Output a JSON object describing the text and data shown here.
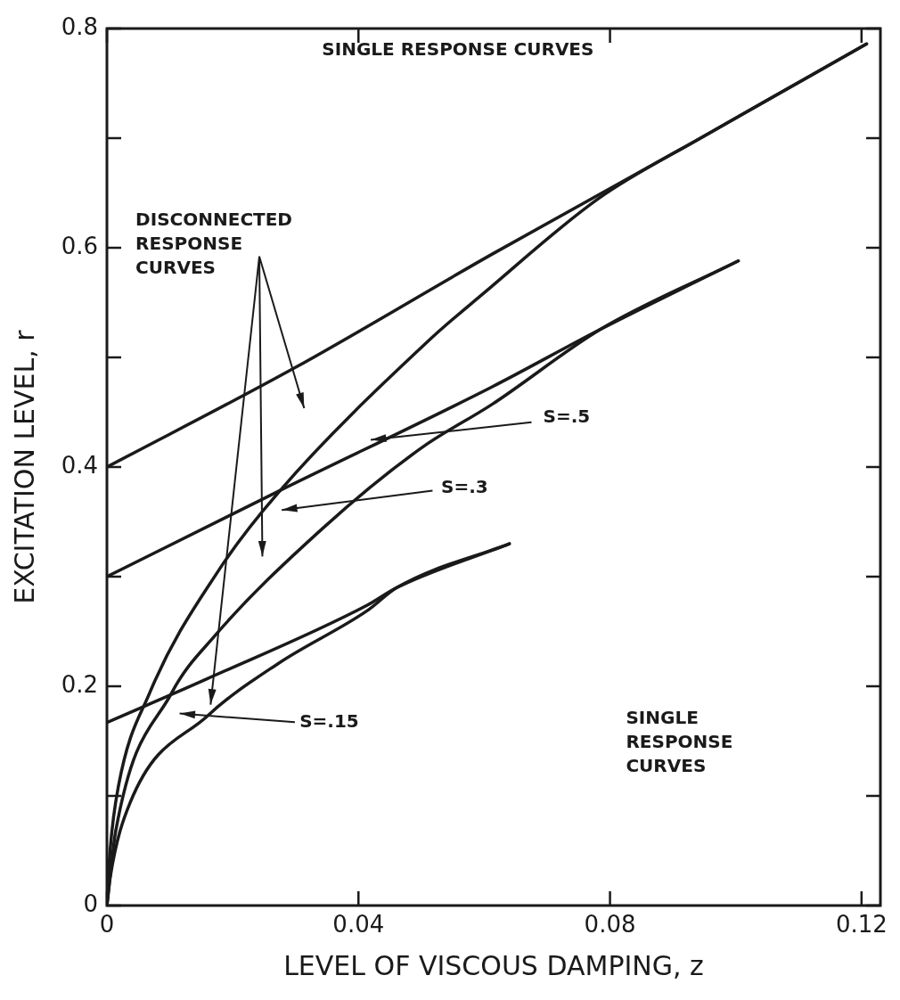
{
  "chart_data": {
    "type": "line",
    "xlabel": "LEVEL OF VISCOUS DAMPING, z",
    "ylabel": "EXCITATION LEVEL, r",
    "xlim": [
      0,
      0.123
    ],
    "ylim": [
      0,
      0.8
    ],
    "xticks": [
      0,
      0.04,
      0.08,
      0.12
    ],
    "yticks": [
      0,
      {
        "value": 0.1,
        "label": null
      },
      0.2,
      {
        "value": 0.3,
        "label": null
      },
      0.4,
      {
        "value": 0.5,
        "label": null
      },
      0.6,
      {
        "value": 0.7,
        "label": null
      },
      0.8
    ],
    "grid": false,
    "legend": false,
    "marker": "none",
    "line_style": "solid",
    "series": [
      {
        "color": "#1a1a1a",
        "x": [
          0,
          0.0297,
          0.0612,
          0.0947,
          0.1208
        ],
        "values": [
          0.4,
          0.49,
          0.594,
          0.701,
          0.786
        ]
      },
      {
        "color": "#1a1a1a",
        "x": [
          0,
          0.0005,
          0.0018,
          0.0068,
          0.0178,
          0.0273,
          0.0513,
          0.0598,
          0.0782,
          0.0947,
          0.1208
        ],
        "values": [
          0,
          0.05,
          0.108,
          0.194,
          0.306,
          0.377,
          0.516,
          0.558,
          0.645,
          0.701,
          0.786
        ]
      },
      {
        "color": "#1a1a1a",
        "x": [
          0,
          0.0273,
          0.0612,
          0.0786,
          0.1004
        ],
        "values": [
          0.3,
          0.378,
          0.473,
          0.526,
          0.588
        ]
      },
      {
        "color": "#1a1a1a",
        "x": [
          0,
          0.0014,
          0.0103,
          0.017,
          0.0343,
          0.0499,
          0.0612,
          0.0786,
          0.1004
        ],
        "values": [
          0,
          0.068,
          0.194,
          0.245,
          0.344,
          0.417,
          0.457,
          0.526,
          0.588
        ]
      },
      {
        "color": "#1a1a1a",
        "x": [
          0,
          0.016,
          0.0414,
          0.0461,
          0.064
        ],
        "values": [
          0.167,
          0.207,
          0.274,
          0.29,
          0.33
        ]
      },
      {
        "color": "#1a1a1a",
        "x": [
          0,
          0.0005,
          0.0037,
          0.016,
          0.0273,
          0.0414,
          0.0461,
          0.064
        ],
        "values": [
          0,
          0.025,
          0.094,
          0.173,
          0.221,
          0.269,
          0.29,
          0.33
        ]
      }
    ],
    "annotations": [
      "SINGLE RESPONSE CURVES",
      "DISCONNECTED RESPONSE CURVES",
      "S=.5",
      "S=.3",
      "S=.15",
      "SINGLE RESPONSE CURVES"
    ]
  }
}
